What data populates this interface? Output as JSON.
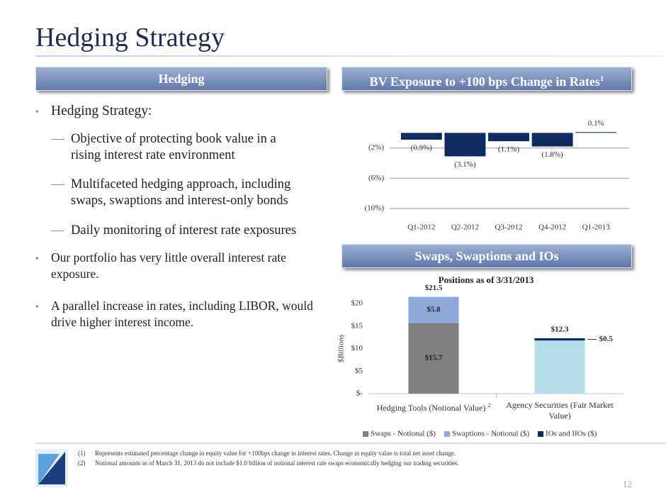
{
  "title": "Hedging Strategy",
  "left_panel": {
    "header": "Hedging",
    "bullets": [
      {
        "text": "Hedging Strategy:",
        "subitems": [
          "Objective of protecting book value in a rising interest rate environment",
          "Multifaceted hedging approach, including swaps, swaptions and interest-only bonds",
          "Daily monitoring of interest rate exposures"
        ]
      },
      {
        "text": "Our portfolio has very little overall interest rate exposure."
      },
      {
        "text": "A parallel increase in rates, including LIBOR, would drive higher interest income."
      }
    ]
  },
  "bv_panel": {
    "header": "BV Exposure to +100 bps Change in Rates",
    "header_sup": "1"
  },
  "swaps_panel": {
    "header": "Swaps, Swaptions and IOs"
  },
  "chart_data": [
    {
      "type": "bar",
      "categories": [
        "Q1-2012",
        "Q2-2012",
        "Q3-2012",
        "Q4-2012",
        "Q1-2013"
      ],
      "values": [
        -0.9,
        -3.1,
        -1.1,
        -1.8,
        0.1
      ],
      "value_labels": [
        "(0.9%)",
        "(3.1%)",
        "(1.1%)",
        "(1.8%)",
        "0.1%"
      ],
      "color": "#0d2b61",
      "ylim": [
        -10,
        2
      ],
      "yticks": [
        {
          "value": -10,
          "label": "(10%)"
        },
        {
          "value": -6,
          "label": "(6%)"
        },
        {
          "value": -2,
          "label": "(2%)"
        }
      ],
      "grid": true
    },
    {
      "type": "bar",
      "stacked": true,
      "subtitle": "Positions as of 3/31/2013",
      "y_label": "$Billions",
      "categories": [
        "Hedging Tools (Notional Value)",
        "Agency Securities (Fair Market Value)"
      ],
      "category_notes": [
        "2",
        null
      ],
      "series": [
        {
          "name": "Swaps - Notional ($)",
          "color": "#808080",
          "values": [
            15.7,
            null
          ],
          "value_labels": [
            "$15.7",
            null
          ]
        },
        {
          "name": "Swaptions - Notional ($)",
          "color": "#8ea9db",
          "values": [
            5.8,
            null
          ],
          "value_labels": [
            "$5.8",
            null
          ]
        },
        {
          "color": "#b7dee8",
          "values": [
            null,
            11.8
          ]
        },
        {
          "name": "IOs and IIOs ($)",
          "color": "#0d2b61",
          "values": [
            null,
            0.5
          ],
          "value_labels": [
            null,
            "$0.5"
          ]
        }
      ],
      "totals": [
        21.5,
        12.3
      ],
      "total_labels": [
        "$21.5",
        "$12.3"
      ],
      "ylim": [
        0,
        20
      ],
      "yticks": [
        {
          "value": 0,
          "label": "$-"
        },
        {
          "value": 5,
          "label": "$5"
        },
        {
          "value": 10,
          "label": "$10"
        },
        {
          "value": 15,
          "label": "$15"
        },
        {
          "value": 20,
          "label": "$20"
        }
      ],
      "grid": false
    }
  ],
  "footnotes": [
    {
      "mark": "(1)",
      "text": "Represents estimated percentage change in equity value for +100bps change in interest rates. Change in equity value is total net asset change."
    },
    {
      "mark": "(2)",
      "text": "Notional amounts as of March 31, 2013 do not include $1.0 billion of notional interest rate swaps economically hedging our trading securities."
    }
  ],
  "page_number": "12"
}
